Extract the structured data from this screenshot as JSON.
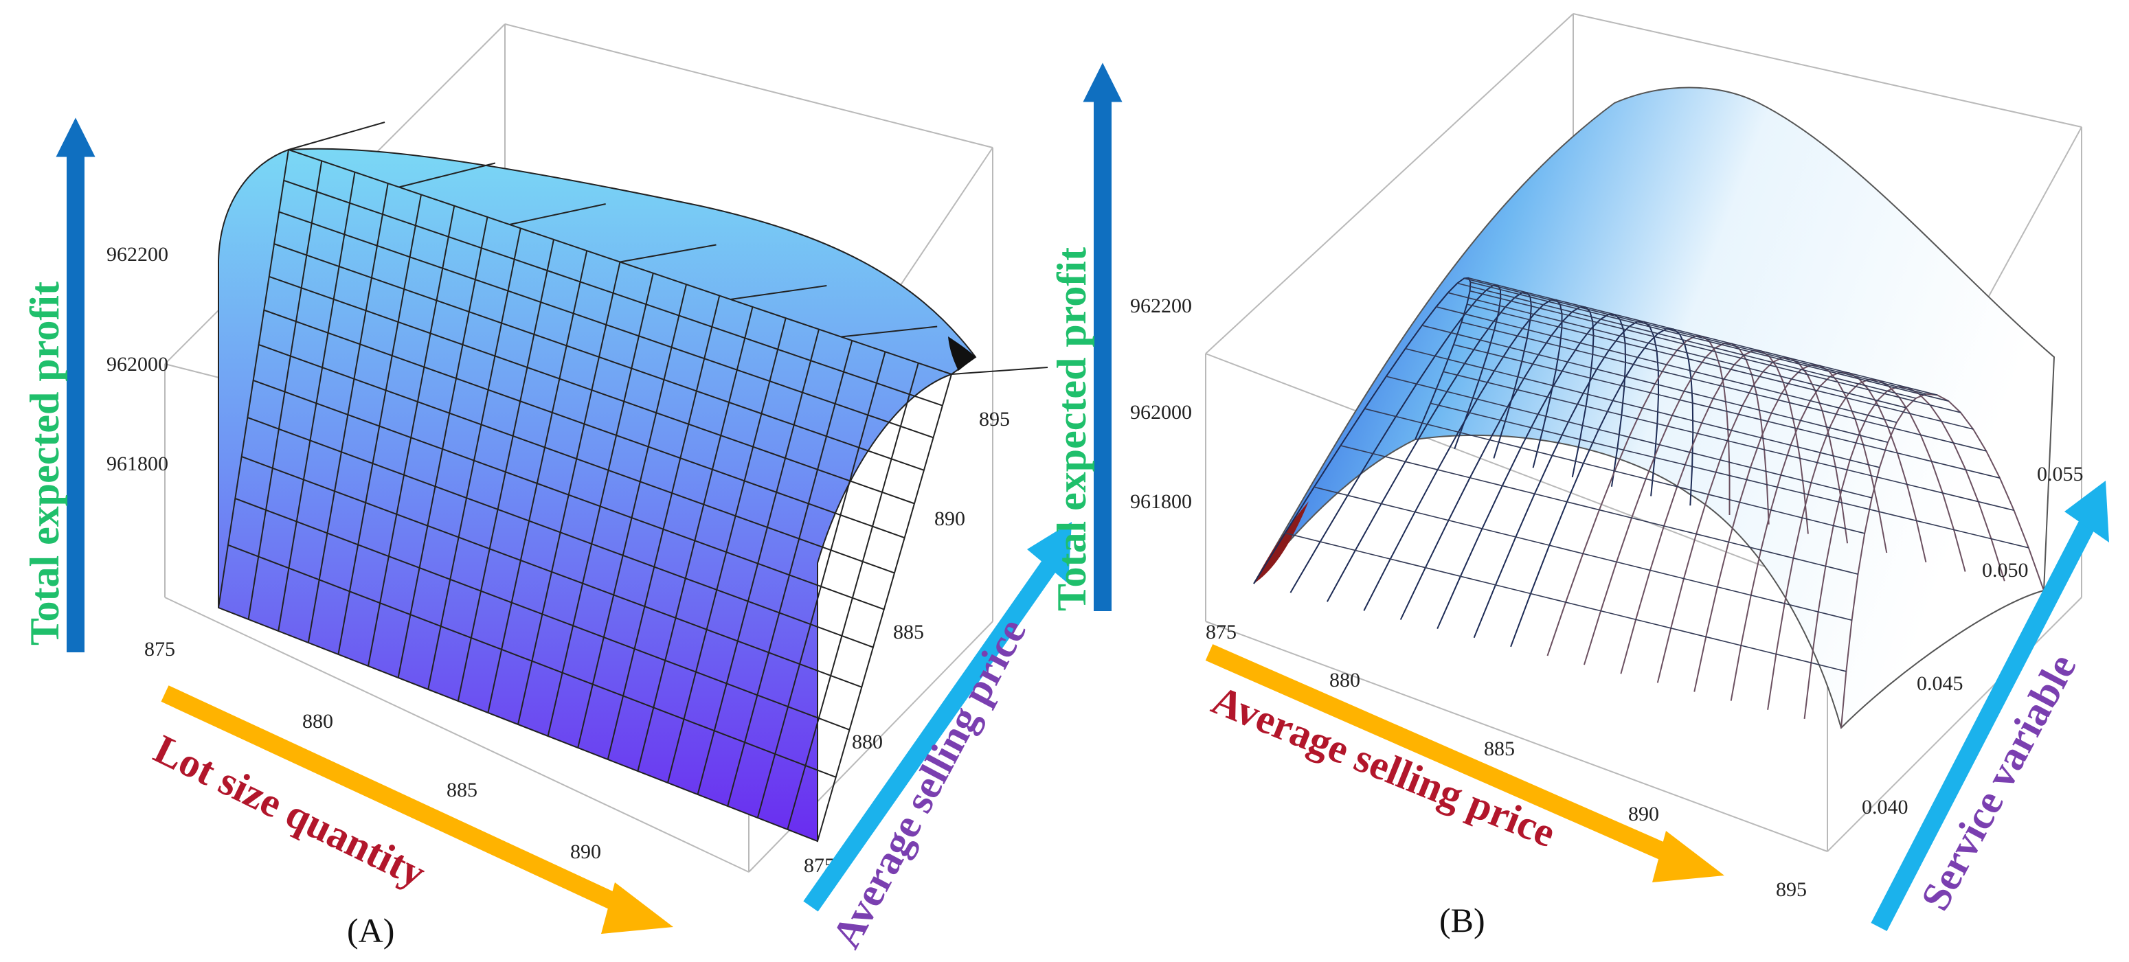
{
  "chart_data": [
    {
      "type": "surface3d",
      "panel_label": "(A)",
      "zlabel": "Total expected profit",
      "xlabel": "Lot size quantity",
      "ylabel": "Average selling price",
      "x_ticks": [
        "875",
        "880",
        "885",
        "890"
      ],
      "y_ticks": [
        "875",
        "880",
        "885",
        "890",
        "895"
      ],
      "z_ticks": [
        "961800",
        "962000",
        "962200"
      ],
      "x_range": [
        875,
        895
      ],
      "y_range": [
        875,
        895
      ],
      "z_range": [
        961750,
        962300
      ],
      "peak_z": 962230,
      "colors": {
        "surface_low": "#6a2cf0",
        "surface_high": "#7ad8f5",
        "arrow_z": "#0f6fc0",
        "arrow_x": "#ffb300",
        "arrow_y": "#1bb2ec"
      }
    },
    {
      "type": "surface3d",
      "panel_label": "(B)",
      "zlabel": "Total expected profit",
      "xlabel": "Average selling price",
      "ylabel": "Service variable",
      "x_ticks": [
        "875",
        "880",
        "885",
        "890",
        "895"
      ],
      "y_ticks": [
        "0.040",
        "0.045",
        "0.050",
        "0.055"
      ],
      "z_ticks": [
        "961800",
        "962000",
        "962200"
      ],
      "x_range": [
        875,
        895
      ],
      "y_range": [
        0.038,
        0.057
      ],
      "z_range": [
        961750,
        962300
      ],
      "peak_z": 962280,
      "colors": {
        "surface_low": "#0b39d8",
        "surface_high": "#ffffff",
        "arrow_z": "#0f6fc0",
        "arrow_x": "#ffb300",
        "arrow_y": "#1bb2ec"
      }
    }
  ]
}
